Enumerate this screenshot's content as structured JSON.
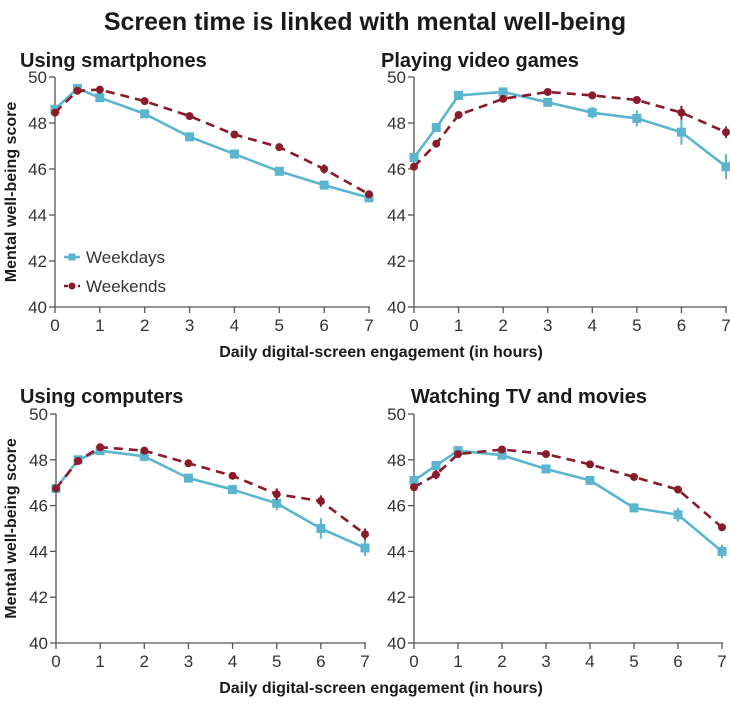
{
  "chart_data": {
    "type": "line",
    "title": "Screen time is linked with mental well-being",
    "ylabel": "Mental well-being score",
    "xlabel": "Daily digital-screen engagement  (in hours)",
    "ylim": [
      40,
      50
    ],
    "xlim": [
      0,
      7
    ],
    "yticks": [
      40,
      42,
      44,
      46,
      48,
      50
    ],
    "xticks": [
      0,
      1,
      2,
      3,
      4,
      5,
      6,
      7
    ],
    "x": [
      0,
      0.5,
      1,
      2,
      3,
      4,
      5,
      6,
      7
    ],
    "legend": {
      "placement": "lower-left of first panel",
      "entries": [
        "Weekdays",
        "Weekends"
      ]
    },
    "colors": {
      "Weekdays": "#5bb5cf",
      "Weekends": "#8b1a2b"
    },
    "panels": [
      {
        "title": "Using smartphones",
        "series": [
          {
            "name": "Weekdays",
            "values": [
              48.6,
              49.5,
              49.1,
              48.4,
              47.4,
              46.65,
              45.9,
              45.3,
              44.75
            ],
            "errors": [
              0.1,
              0.1,
              0.1,
              0.1,
              0.1,
              0.1,
              0.15,
              0.15,
              0.1
            ]
          },
          {
            "name": "Weekends",
            "values": [
              48.45,
              49.4,
              49.45,
              48.95,
              48.3,
              47.5,
              46.95,
              46.0,
              44.9
            ],
            "errors": [
              0.1,
              0.1,
              0.1,
              0.1,
              0.1,
              0.1,
              0.15,
              0.2,
              0.1
            ]
          }
        ]
      },
      {
        "title": "Playing video games",
        "series": [
          {
            "name": "Weekdays",
            "values": [
              46.5,
              47.8,
              49.2,
              49.35,
              48.9,
              48.45,
              48.2,
              47.6,
              46.1
            ],
            "errors": [
              0.1,
              0.1,
              0.1,
              0.1,
              0.1,
              0.25,
              0.35,
              0.55,
              0.55
            ]
          },
          {
            "name": "Weekends",
            "values": [
              46.1,
              47.1,
              48.35,
              49.05,
              49.35,
              49.2,
              49.0,
              48.45,
              47.6
            ],
            "errors": [
              0.1,
              0.1,
              0.1,
              0.1,
              0.1,
              0.1,
              0.15,
              0.3,
              0.25
            ]
          }
        ]
      },
      {
        "title": "Using computers",
        "series": [
          {
            "name": "Weekdays",
            "values": [
              46.75,
              48.0,
              48.4,
              48.15,
              47.2,
              46.7,
              46.1,
              45.0,
              44.15
            ],
            "errors": [
              0.1,
              0.1,
              0.1,
              0.1,
              0.1,
              0.2,
              0.3,
              0.45,
              0.35
            ]
          },
          {
            "name": "Weekends",
            "values": [
              46.75,
              47.95,
              48.55,
              48.4,
              47.85,
              47.3,
              46.5,
              46.2,
              44.75
            ],
            "errors": [
              0.1,
              0.1,
              0.1,
              0.1,
              0.1,
              0.15,
              0.25,
              0.25,
              0.25
            ]
          }
        ]
      },
      {
        "title": "Watching TV and movies",
        "series": [
          {
            "name": "Weekdays",
            "values": [
              47.1,
              47.75,
              48.4,
              48.2,
              47.6,
              47.1,
              45.9,
              45.6,
              44.0
            ],
            "errors": [
              0.1,
              0.2,
              0.1,
              0.1,
              0.1,
              0.1,
              0.2,
              0.3,
              0.3
            ]
          },
          {
            "name": "Weekends",
            "values": [
              46.8,
              47.35,
              48.25,
              48.45,
              48.25,
              47.8,
              47.25,
              46.7,
              45.05
            ],
            "errors": [
              0.1,
              0.2,
              0.1,
              0.1,
              0.1,
              0.1,
              0.1,
              0.15,
              0.1
            ]
          }
        ]
      }
    ]
  }
}
